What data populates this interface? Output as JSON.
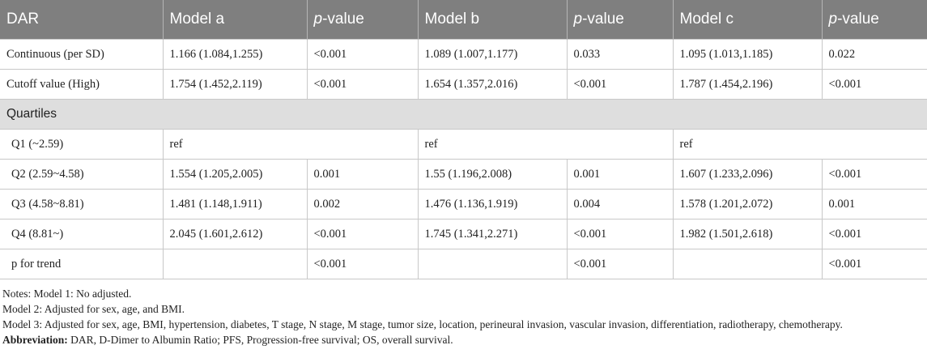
{
  "table": {
    "headers": [
      "DAR",
      "Model a",
      "p-value",
      "Model b",
      "p-value",
      "Model c",
      "p-value"
    ],
    "header_parts": [
      {
        "pre": "",
        "italic": "",
        "post": "DAR"
      },
      {
        "pre": "",
        "italic": "",
        "post": "Model a"
      },
      {
        "pre": "",
        "italic": "p",
        "post": "-value"
      },
      {
        "pre": "",
        "italic": "",
        "post": "Model b"
      },
      {
        "pre": "",
        "italic": "p",
        "post": "-value"
      },
      {
        "pre": "",
        "italic": "",
        "post": "Model c"
      },
      {
        "pre": "",
        "italic": "p",
        "post": "-value"
      }
    ],
    "rows": [
      {
        "label": "Continuous (per SD)",
        "cells": [
          "1.166 (1.084,1.255)",
          "<0.001",
          "1.089 (1.007,1.177)",
          "0.033",
          "1.095 (1.013,1.185)",
          "0.022"
        ]
      },
      {
        "label": "Cutoff value (High)",
        "cells": [
          "1.754 (1.452,2.119)",
          "<0.001",
          "1.654 (1.357,2.016)",
          "<0.001",
          "1.787 (1.454,2.196)",
          "<0.001"
        ]
      }
    ],
    "section_label": "Quartiles",
    "quartile_rows": [
      {
        "label": "Q1 (~2.59)",
        "ref": [
          "ref",
          "ref",
          "ref"
        ]
      },
      {
        "label": "Q2 (2.59~4.58)",
        "cells": [
          "1.554 (1.205,2.005)",
          "0.001",
          "1.55 (1.196,2.008)",
          "0.001",
          "1.607 (1.233,2.096)",
          "<0.001"
        ]
      },
      {
        "label": "Q3 (4.58~8.81)",
        "cells": [
          "1.481 (1.148,1.911)",
          "0.002",
          "1.476 (1.136,1.919)",
          "0.004",
          "1.578 (1.201,2.072)",
          "0.001"
        ]
      },
      {
        "label": "Q4 (8.81~)",
        "cells": [
          "2.045 (1.601,2.612)",
          "<0.001",
          "1.745 (1.341,2.271)",
          "<0.001",
          "1.982 (1.501,2.618)",
          "<0.001"
        ]
      }
    ],
    "trend_row": {
      "label": "p for trend",
      "cells": [
        "",
        "<0.001",
        "",
        "<0.001",
        "",
        "<0.001"
      ]
    }
  },
  "notes": {
    "line1": "Notes: Model 1: No adjusted.",
    "line2": "Model 2: Adjusted for sex, age, and BMI.",
    "line3": "Model 3: Adjusted for sex, age, BMI, hypertension, diabetes, T stage, N stage, M stage, tumor size, location, perineural invasion, vascular invasion, differentiation, radiotherapy, chemotherapy.",
    "abbrev_label": "Abbreviation:",
    "abbrev_text": " DAR, D-Dimer to Albumin Ratio; PFS, Progression-free survival; OS, overall survival."
  },
  "colors": {
    "header_bg": "#7f7f7f",
    "section_bg": "#dedede",
    "border": "#c8c8c8"
  }
}
